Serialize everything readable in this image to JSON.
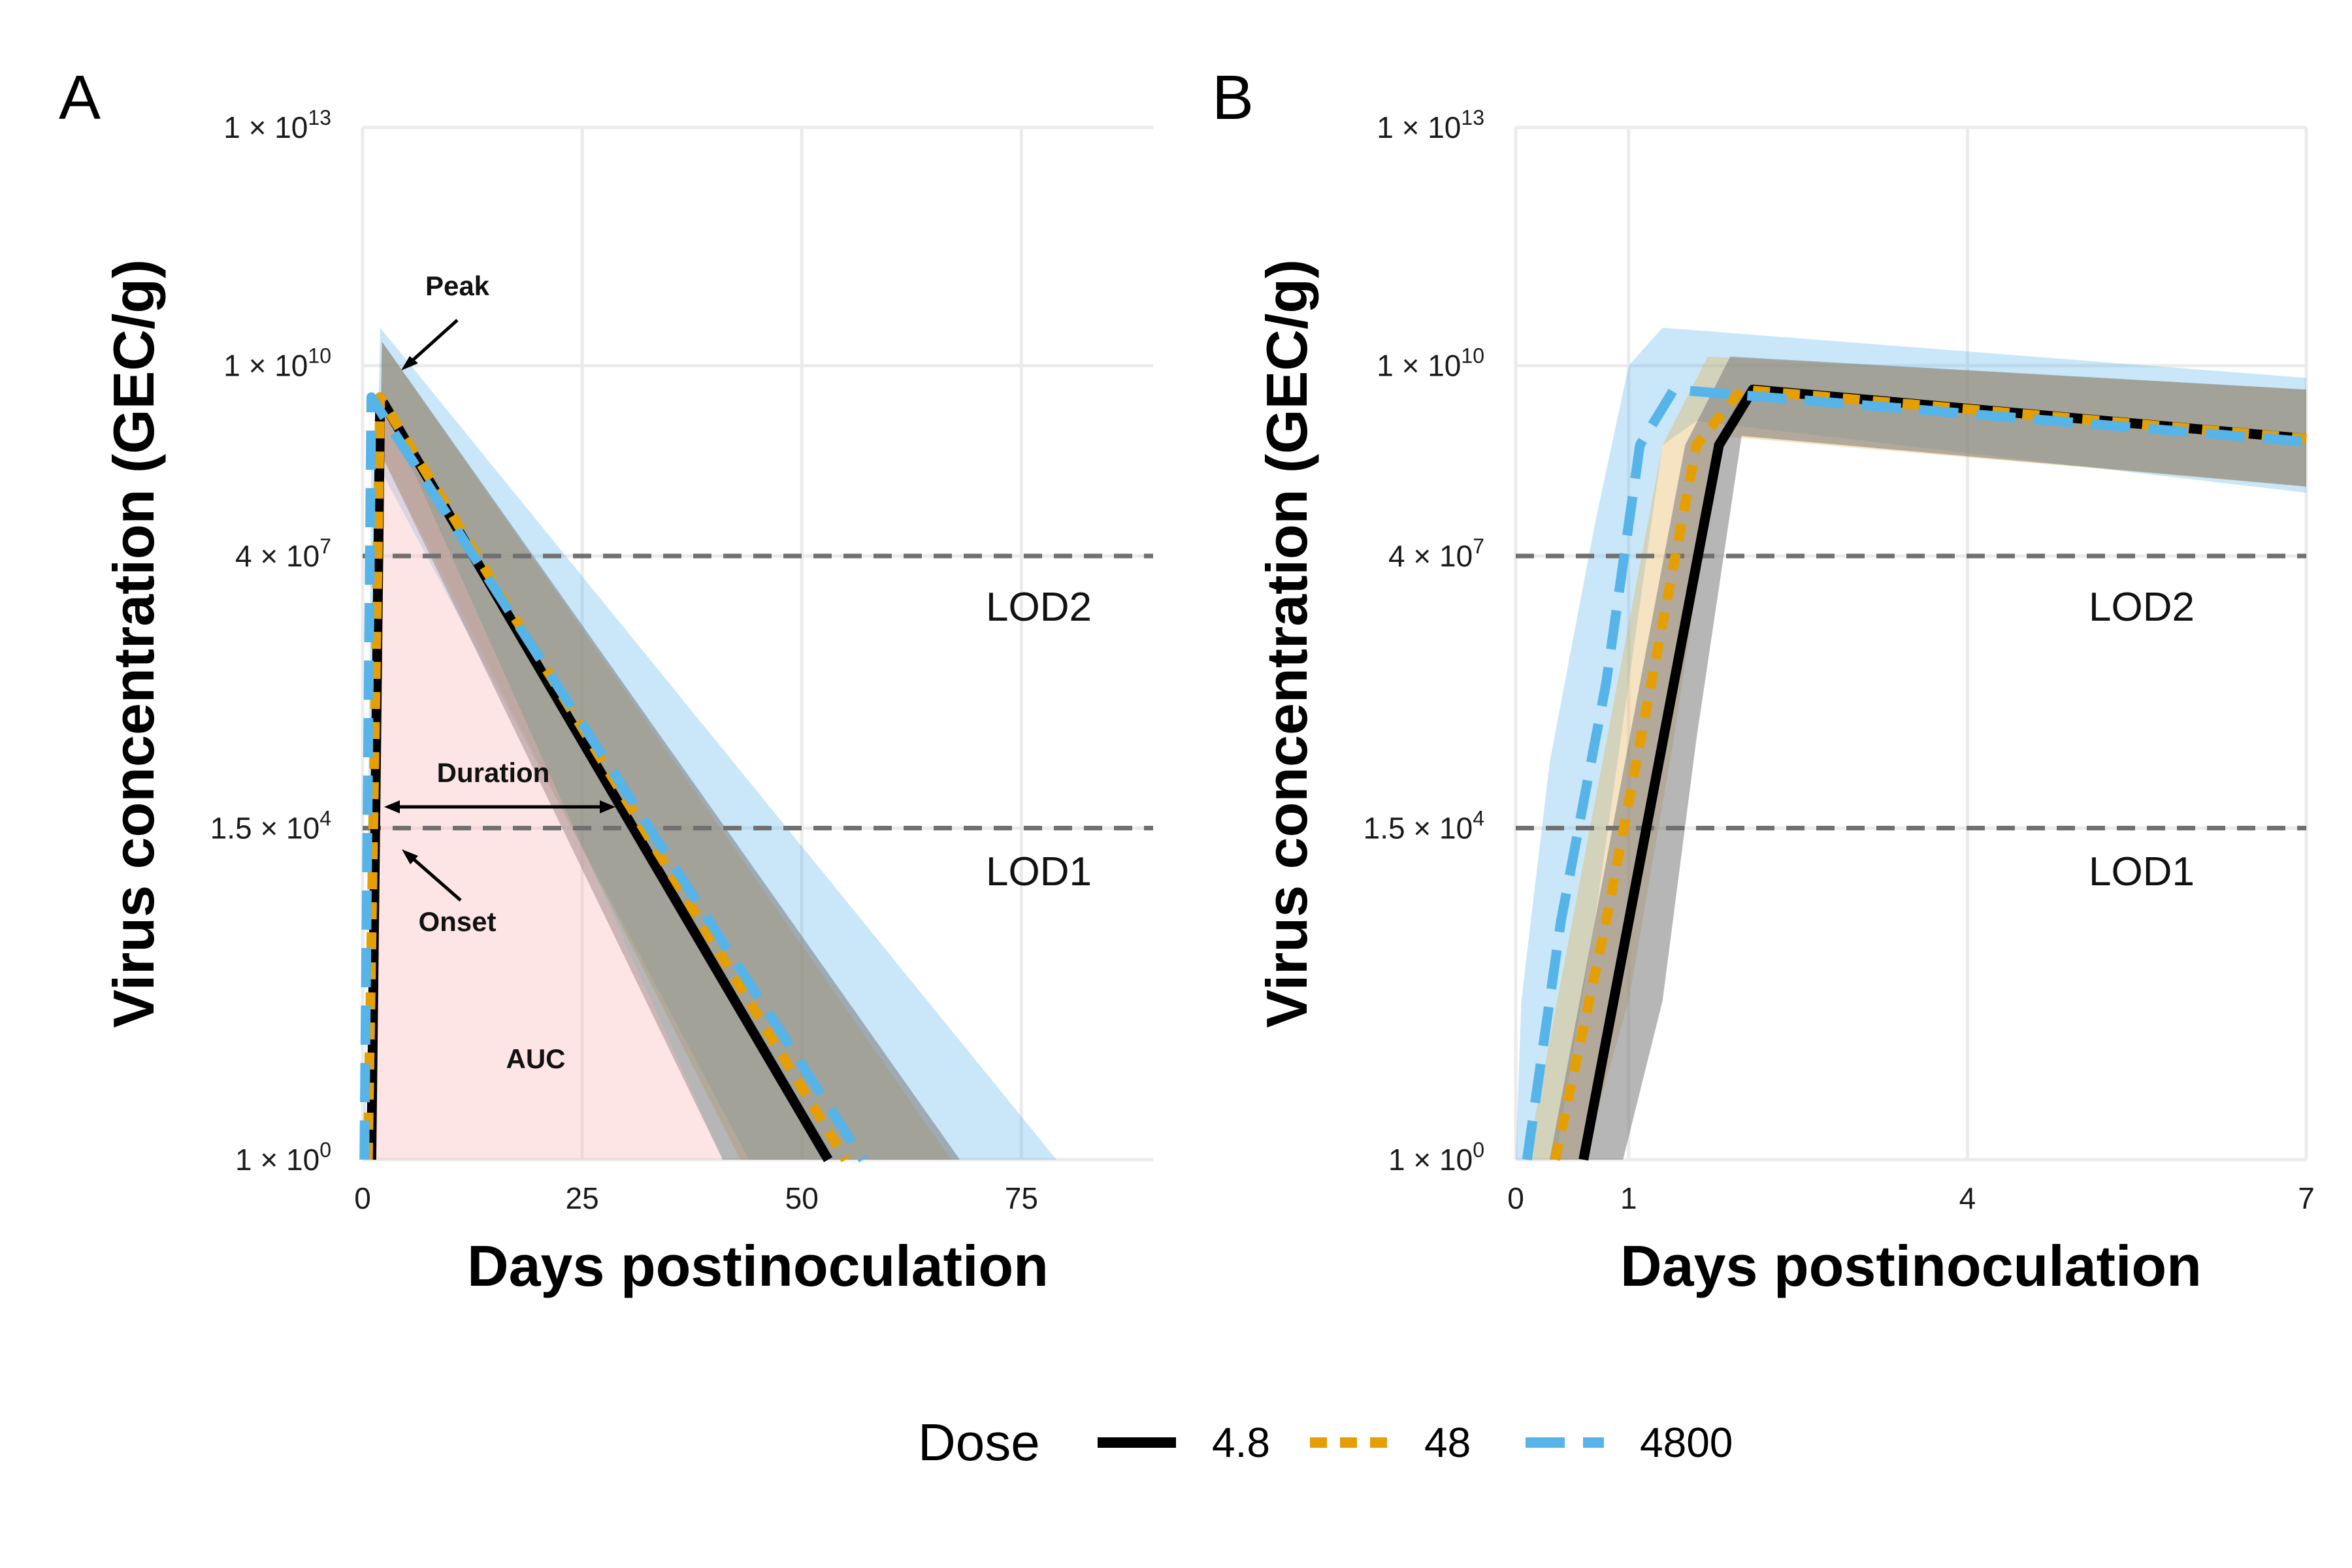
{
  "chart_data": [
    {
      "type": "line",
      "panel": "A",
      "xlabel": "Days postinoculation",
      "ylabel": "Virus concentration (GEC/g)",
      "xlim": [
        0,
        90
      ],
      "x_ticks": [
        0,
        25,
        50,
        75
      ],
      "y_scale": "log10",
      "ylim": [
        1,
        10000000000000.0
      ],
      "y_ticks": [
        {
          "value": 1,
          "base": "1 × 10",
          "exp": "0"
        },
        {
          "value": 15000,
          "base": "1.5 × 10",
          "exp": "4"
        },
        {
          "value": 40000000,
          "base": "4 × 10",
          "exp": "7"
        },
        {
          "value": 10000000000.0,
          "base": "1 × 10",
          "exp": "10"
        },
        {
          "value": 10000000000000.0,
          "base": "1 × 10",
          "exp": "13"
        }
      ],
      "reference_lines": [
        {
          "name": "LOD1",
          "value": 15000,
          "label": "LOD1"
        },
        {
          "name": "LOD2",
          "value": 40000000,
          "label": "LOD2"
        }
      ],
      "annotations": [
        {
          "name": "peak",
          "text": "Peak"
        },
        {
          "name": "duration",
          "text": "Duration"
        },
        {
          "name": "onset",
          "text": "Onset"
        },
        {
          "name": "auc",
          "text": "AUC"
        }
      ],
      "series": [
        {
          "name": "4.8",
          "color": "#000000",
          "dash": "solid",
          "x": [
            1.0,
            2.0,
            53.0
          ],
          "y": [
            1,
            4000000000.0,
            1
          ],
          "band_lower": [
            [
              1.2,
              1
            ],
            [
              1.6,
              1000000000.0
            ],
            [
              41,
              1
            ],
            [
              1.2,
              1
            ]
          ],
          "band_upper": [
            [
              0.8,
              1
            ],
            [
              2.2,
              20000000000.0
            ],
            [
              68,
              1
            ],
            [
              0.8,
              1
            ]
          ]
        },
        {
          "name": "48",
          "color": "#E69F00",
          "dash": "dashed",
          "x": [
            0.6,
            2.0,
            55.0
          ],
          "y": [
            1,
            4000000000.0,
            1
          ],
          "band_lower": [
            [
              0.8,
              1
            ],
            [
              1.6,
              1000000000.0
            ],
            [
              43,
              1
            ],
            [
              0.8,
              1
            ]
          ],
          "band_upper": [
            [
              0.4,
              1
            ],
            [
              2.2,
              20000000000.0
            ],
            [
              67,
              1
            ],
            [
              0.4,
              1
            ]
          ]
        },
        {
          "name": "4800",
          "color": "#56B4E9",
          "dash": "longdash",
          "x": [
            0.2,
            1.0,
            57.0
          ],
          "y": [
            1,
            4000000000.0,
            1
          ],
          "band_lower": [
            [
              0.3,
              1
            ],
            [
              1.0,
              800000000.0
            ],
            [
              44,
              1
            ],
            [
              0.3,
              1
            ]
          ],
          "band_upper": [
            [
              0.05,
              1
            ],
            [
              2.0,
              30000000000.0
            ],
            [
              79,
              1
            ],
            [
              0.05,
              1
            ]
          ]
        }
      ],
      "auc_region": [
        [
          1.0,
          1
        ],
        [
          2.0,
          4000000000.0
        ],
        [
          41,
          1
        ]
      ]
    },
    {
      "type": "line",
      "panel": "B",
      "xlabel": "Days postinoculation",
      "ylabel": "Virus concentration (GEC/g)",
      "xlim": [
        0,
        7
      ],
      "x_ticks": [
        0,
        1,
        4,
        7
      ],
      "y_scale": "log10",
      "ylim": [
        1,
        10000000000000.0
      ],
      "y_ticks": [
        {
          "value": 1,
          "base": "1 × 10",
          "exp": "0"
        },
        {
          "value": 15000,
          "base": "1.5 × 10",
          "exp": "4"
        },
        {
          "value": 40000000,
          "base": "4 × 10",
          "exp": "7"
        },
        {
          "value": 10000000000.0,
          "base": "1 × 10",
          "exp": "10"
        },
        {
          "value": 10000000000000.0,
          "base": "1 × 10",
          "exp": "13"
        }
      ],
      "reference_lines": [
        {
          "name": "LOD1",
          "value": 15000,
          "label": "LOD1"
        },
        {
          "name": "LOD2",
          "value": 40000000,
          "label": "LOD2"
        }
      ],
      "series": [
        {
          "name": "4.8",
          "color": "#000000",
          "dash": "solid",
          "x": [
            0.6,
            1.0,
            1.4,
            1.8,
            2.1,
            7.0
          ],
          "y": [
            1,
            1000.0,
            1000000.0,
            1000000000.0,
            5000000000.0,
            1200000000.0
          ],
          "band_lower": [
            [
              0.95,
              1
            ],
            [
              1.3,
              100.0
            ],
            [
              1.6,
              200000.0
            ],
            [
              2.0,
              1300000000.0
            ],
            [
              7.0,
              300000000.0
            ]
          ],
          "band_upper": [
            [
              0.3,
              1
            ],
            [
              0.7,
              1000.0
            ],
            [
              1.1,
              1000000.0
            ],
            [
              1.5,
              1000000000.0
            ],
            [
              1.9,
              13000000000.0
            ],
            [
              7.0,
              5000000000.0
            ]
          ]
        },
        {
          "name": "48",
          "color": "#E69F00",
          "dash": "dashed",
          "x": [
            0.35,
            0.8,
            1.2,
            1.6,
            2.0,
            7.0
          ],
          "y": [
            1,
            1000.0,
            1000000.0,
            1000000000.0,
            5000000000.0,
            1200000000.0
          ],
          "band_lower": [
            [
              0.6,
              1
            ],
            [
              1.0,
              100.0
            ],
            [
              1.4,
              200000.0
            ],
            [
              1.8,
              1300000000.0
            ],
            [
              7.0,
              300000000.0
            ]
          ],
          "band_upper": [
            [
              0.1,
              1
            ],
            [
              0.5,
              1000.0
            ],
            [
              0.9,
              1000000.0
            ],
            [
              1.3,
              1000000000.0
            ],
            [
              1.7,
              13000000000.0
            ],
            [
              7.0,
              5000000000.0
            ]
          ]
        },
        {
          "name": "4800",
          "color": "#56B4E9",
          "dash": "longdash",
          "x": [
            0.1,
            0.4,
            0.8,
            1.1,
            1.4,
            7.0
          ],
          "y": [
            1,
            1000.0,
            1000000.0,
            1000000000.0,
            5000000000.0,
            1100000000.0
          ],
          "band_lower": [
            [
              0.35,
              1
            ],
            [
              0.7,
              1000.0
            ],
            [
              1.0,
              1000000.0
            ],
            [
              1.3,
              1000000000.0
            ],
            [
              1.6,
              2000000000.0
            ],
            [
              7.0,
              250000000.0
            ]
          ],
          "band_upper": [
            [
              0.0,
              1
            ],
            [
              0.05,
              100.0
            ],
            [
              0.3,
              100000.0
            ],
            [
              0.7,
              100000000.0
            ],
            [
              1.0,
              10000000000.0
            ],
            [
              1.3,
              30000000000.0
            ],
            [
              7.0,
              7000000000.0
            ]
          ]
        }
      ]
    }
  ],
  "legend": {
    "title": "Dose",
    "items": [
      {
        "label": "4.8",
        "color": "#000000",
        "dash": "solid"
      },
      {
        "label": "48",
        "color": "#E69F00",
        "dash": "dashed"
      },
      {
        "label": "4800",
        "color": "#56B4E9",
        "dash": "longdash"
      }
    ]
  }
}
